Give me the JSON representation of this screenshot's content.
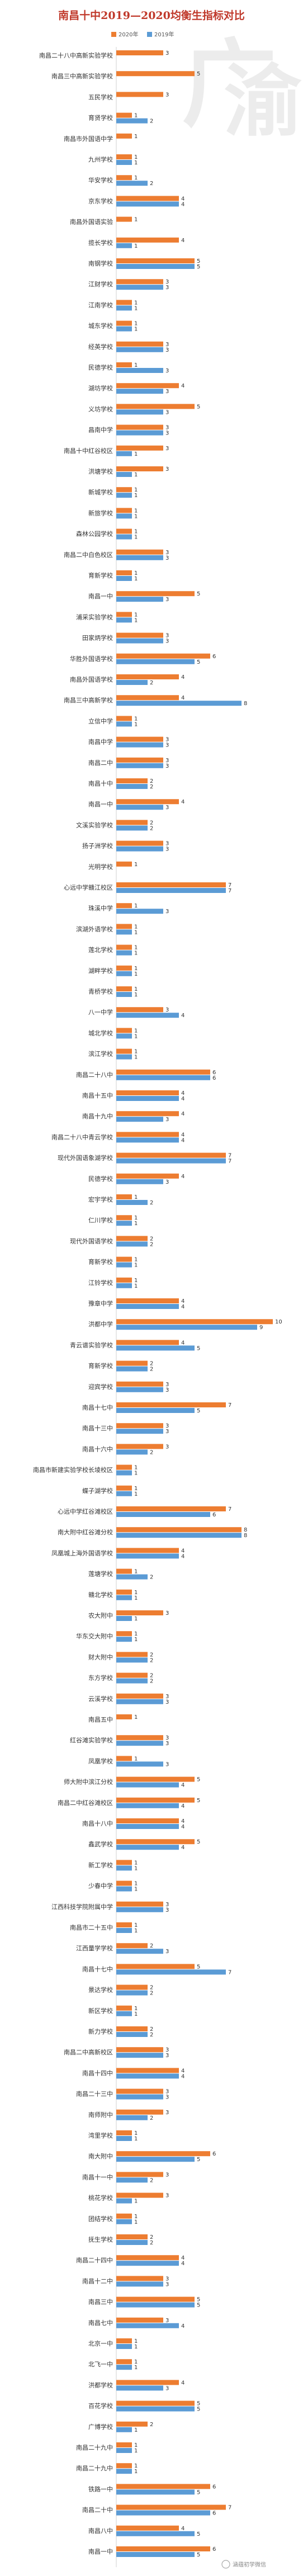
{
  "chart_data": {
    "type": "bar",
    "orientation": "horizontal",
    "title": "南昌十中2019—2020均衡生指标对比",
    "legend_position": "top",
    "grid": false,
    "xlim": [
      0,
      10
    ],
    "series": [
      {
        "name": "2020年",
        "color": "#ed7d31"
      },
      {
        "name": "2019年",
        "color": "#5b9bd5"
      }
    ],
    "rows": [
      {
        "category": "南昌二十八中高新实验学校",
        "v2020": 3,
        "v2019": null
      },
      {
        "category": "南昌三中高新实验学校",
        "v2020": 5,
        "v2019": null
      },
      {
        "category": "五民学校",
        "v2020": 3,
        "v2019": null
      },
      {
        "category": "育贤学校",
        "v2020": 1,
        "v2019": 2
      },
      {
        "category": "南昌市外国语中学",
        "v2020": 1,
        "v2019": null
      },
      {
        "category": "九州学校",
        "v2020": 1,
        "v2019": 1
      },
      {
        "category": "华安学校",
        "v2020": 1,
        "v2019": 2
      },
      {
        "category": "京东学校",
        "v2020": 4,
        "v2019": 4
      },
      {
        "category": "南昌外国语实验",
        "v2020": 1,
        "v2019": null
      },
      {
        "category": "揽长学校",
        "v2020": 4,
        "v2019": 1
      },
      {
        "category": "南钢学校",
        "v2020": 5,
        "v2019": 5
      },
      {
        "category": "江财学校",
        "v2020": 3,
        "v2019": 3
      },
      {
        "category": "江南学校",
        "v2020": 1,
        "v2019": 1
      },
      {
        "category": "城东学校",
        "v2020": 1,
        "v2019": 1
      },
      {
        "category": "经英学校",
        "v2020": 3,
        "v2019": 3
      },
      {
        "category": "民德学校",
        "v2020": 1,
        "v2019": 3
      },
      {
        "category": "湖坊学校",
        "v2020": 4,
        "v2019": 3
      },
      {
        "category": "义坊学校",
        "v2020": 5,
        "v2019": 3
      },
      {
        "category": "昌南中学",
        "v2020": 3,
        "v2019": 3
      },
      {
        "category": "南昌十中红谷校区",
        "v2020": 3,
        "v2019": 1
      },
      {
        "category": "洪塘学校",
        "v2020": 3,
        "v2019": 1
      },
      {
        "category": "新城学校",
        "v2020": 1,
        "v2019": 1
      },
      {
        "category": "新旅学校",
        "v2020": 1,
        "v2019": 1
      },
      {
        "category": "森林公园学校",
        "v2020": 1,
        "v2019": 1
      },
      {
        "category": "南昌二中白色校区",
        "v2020": 3,
        "v2019": 3
      },
      {
        "category": "育新学校",
        "v2020": 1,
        "v2019": 1
      },
      {
        "category": "南昌一中",
        "v2020": 5,
        "v2019": 3
      },
      {
        "category": "浦采实验学校",
        "v2020": 1,
        "v2019": 1
      },
      {
        "category": "田家炳学校",
        "v2020": 3,
        "v2019": 3
      },
      {
        "category": "华胜外国语学校",
        "v2020": 6,
        "v2019": 5
      },
      {
        "category": "南昌外国语学校",
        "v2020": 4,
        "v2019": 2
      },
      {
        "category": "南昌三中高新学校",
        "v2020": 4,
        "v2019": 8
      },
      {
        "category": "立信中学",
        "v2020": 1,
        "v2019": 1
      },
      {
        "category": "南昌中学",
        "v2020": 3,
        "v2019": 3
      },
      {
        "category": "南昌二中",
        "v2020": 3,
        "v2019": 3
      },
      {
        "category": "南昌十中",
        "v2020": 2,
        "v2019": 2
      },
      {
        "category": "南昌一中",
        "v2020": 4,
        "v2019": 3
      },
      {
        "category": "文溪实验学校",
        "v2020": 2,
        "v2019": 2
      },
      {
        "category": "扬子洲学校",
        "v2020": 3,
        "v2019": 3
      },
      {
        "category": "光明学校",
        "v2020": 1,
        "v2019": null
      },
      {
        "category": "心远中学赣江校区",
        "v2020": 7,
        "v2019": 7
      },
      {
        "category": "珠溪中学",
        "v2020": 1,
        "v2019": 3
      },
      {
        "category": "滨湖外语学校",
        "v2020": 1,
        "v2019": 1
      },
      {
        "category": "莲北学校",
        "v2020": 1,
        "v2019": 1
      },
      {
        "category": "湖畔学校",
        "v2020": 1,
        "v2019": 1
      },
      {
        "category": "青桥学校",
        "v2020": 1,
        "v2019": 1
      },
      {
        "category": "八一中学",
        "v2020": 3,
        "v2019": 4
      },
      {
        "category": "城北学校",
        "v2020": 1,
        "v2019": 1
      },
      {
        "category": "滨江学校",
        "v2020": 1,
        "v2019": 1
      },
      {
        "category": "南昌二十八中",
        "v2020": 6,
        "v2019": 6
      },
      {
        "category": "南昌十五中",
        "v2020": 4,
        "v2019": 4
      },
      {
        "category": "南昌十九中",
        "v2020": 4,
        "v2019": 3
      },
      {
        "category": "南昌二十八中青云学校",
        "v2020": 4,
        "v2019": 4
      },
      {
        "category": "现代外国语象湖学校",
        "v2020": 7,
        "v2019": 7
      },
      {
        "category": "民德学校",
        "v2020": 4,
        "v2019": 3
      },
      {
        "category": "宏宇学校",
        "v2020": 1,
        "v2019": 2
      },
      {
        "category": "仁川学校",
        "v2020": 1,
        "v2019": 1
      },
      {
        "category": "现代外国语学校",
        "v2020": 2,
        "v2019": 2
      },
      {
        "category": "育新学校",
        "v2020": 1,
        "v2019": 1
      },
      {
        "category": "江铃学校",
        "v2020": 1,
        "v2019": 1
      },
      {
        "category": "豫章中学",
        "v2020": 4,
        "v2019": 4
      },
      {
        "category": "洪都中学",
        "v2020": 10,
        "v2019": 9
      },
      {
        "category": "青云谱实验学校",
        "v2020": 4,
        "v2019": 5
      },
      {
        "category": "育新学校",
        "v2020": 2,
        "v2019": 2
      },
      {
        "category": "迎宾学校",
        "v2020": 3,
        "v2019": 3
      },
      {
        "category": "南昌十七中",
        "v2020": 7,
        "v2019": 5
      },
      {
        "category": "南昌十三中",
        "v2020": 3,
        "v2019": 3
      },
      {
        "category": "南昌十六中",
        "v2020": 3,
        "v2019": 2
      },
      {
        "category": "南昌市新建实验学校长堎校区",
        "v2020": 1,
        "v2019": 1
      },
      {
        "category": "蝶子湖学校",
        "v2020": 1,
        "v2019": 1
      },
      {
        "category": "心远中学红谷滩校区",
        "v2020": 7,
        "v2019": 6
      },
      {
        "category": "南大附中红谷滩分校",
        "v2020": 8,
        "v2019": 8
      },
      {
        "category": "凤凰城上海外国语学校",
        "v2020": 4,
        "v2019": 4
      },
      {
        "category": "莲塘学校",
        "v2020": 1,
        "v2019": 2
      },
      {
        "category": "赣北学校",
        "v2020": 1,
        "v2019": 1
      },
      {
        "category": "农大附中",
        "v2020": 3,
        "v2019": 1
      },
      {
        "category": "华东交大附中",
        "v2020": 1,
        "v2019": 1
      },
      {
        "category": "财大附中",
        "v2020": 2,
        "v2019": 2
      },
      {
        "category": "东方学校",
        "v2020": 2,
        "v2019": 2
      },
      {
        "category": "云溪学校",
        "v2020": 3,
        "v2019": 3
      },
      {
        "category": "南昌五中",
        "v2020": 1,
        "v2019": null
      },
      {
        "category": "红谷滩实验学校",
        "v2020": 3,
        "v2019": 3
      },
      {
        "category": "凤凰学校",
        "v2020": 1,
        "v2019": 3
      },
      {
        "category": "师大附中滨江分校",
        "v2020": 5,
        "v2019": 4
      },
      {
        "category": "南昌二中红谷滩校区",
        "v2020": 5,
        "v2019": 4
      },
      {
        "category": "南昌十八中",
        "v2020": 4,
        "v2019": 4
      },
      {
        "category": "鑫武学校",
        "v2020": 5,
        "v2019": 4
      },
      {
        "category": "新工学校",
        "v2020": 1,
        "v2019": 1
      },
      {
        "category": "少春中学",
        "v2020": 1,
        "v2019": 1
      },
      {
        "category": "江西科技学院附属中学",
        "v2020": 3,
        "v2019": 3
      },
      {
        "category": "南昌市二十五中",
        "v2020": 1,
        "v2019": 1
      },
      {
        "category": "江西量学学校",
        "v2020": 2,
        "v2019": 3
      },
      {
        "category": "南昌十七中",
        "v2020": 5,
        "v2019": 7
      },
      {
        "category": "景达学校",
        "v2020": 2,
        "v2019": 2
      },
      {
        "category": "新区学校",
        "v2020": 1,
        "v2019": 1
      },
      {
        "category": "新力学校",
        "v2020": 2,
        "v2019": 2
      },
      {
        "category": "南昌二中高新校区",
        "v2020": 3,
        "v2019": 3
      },
      {
        "category": "南昌十四中",
        "v2020": 4,
        "v2019": 4
      },
      {
        "category": "南昌二十三中",
        "v2020": 3,
        "v2019": 3
      },
      {
        "category": "南师附中",
        "v2020": 3,
        "v2019": 2
      },
      {
        "category": "湾里学校",
        "v2020": 1,
        "v2019": 1
      },
      {
        "category": "南大附中",
        "v2020": 6,
        "v2019": 5
      },
      {
        "category": "南昌十一中",
        "v2020": 3,
        "v2019": 2
      },
      {
        "category": "桃花学校",
        "v2020": 3,
        "v2019": 1
      },
      {
        "category": "团结学校",
        "v2020": 1,
        "v2019": 1
      },
      {
        "category": "抚生学校",
        "v2020": 2,
        "v2019": 2
      },
      {
        "category": "南昌二十四中",
        "v2020": 4,
        "v2019": 4
      },
      {
        "category": "南昌十二中",
        "v2020": 3,
        "v2019": 3
      },
      {
        "category": "南昌三中",
        "v2020": 5,
        "v2019": 5
      },
      {
        "category": "南昌七中",
        "v2020": 3,
        "v2019": 4
      },
      {
        "category": "北京一中",
        "v2020": 1,
        "v2019": 1
      },
      {
        "category": "北飞一中",
        "v2020": 1,
        "v2019": 1
      },
      {
        "category": "洪都学校",
        "v2020": 4,
        "v2019": 3
      },
      {
        "category": "百花学校",
        "v2020": 5,
        "v2019": 5
      },
      {
        "category": "广博学校",
        "v2020": 2,
        "v2019": 1
      },
      {
        "category": "南昌二十九中",
        "v2020": 1,
        "v2019": 1
      },
      {
        "category": "南昌二十九中",
        "v2020": 1,
        "v2019": 1
      },
      {
        "category": "铁路一中",
        "v2020": 6,
        "v2019": 5
      },
      {
        "category": "南昌二十中",
        "v2020": 7,
        "v2019": 6
      },
      {
        "category": "南昌八中",
        "v2020": 4,
        "v2019": 5
      },
      {
        "category": "南昌一中",
        "v2020": 6,
        "v2019": 5
      }
    ]
  },
  "decoration": {
    "watermark_glyph_top": "广",
    "watermark_glyph_bottom": "渝"
  },
  "watermark": {
    "text": "涵蕴初学微信"
  }
}
